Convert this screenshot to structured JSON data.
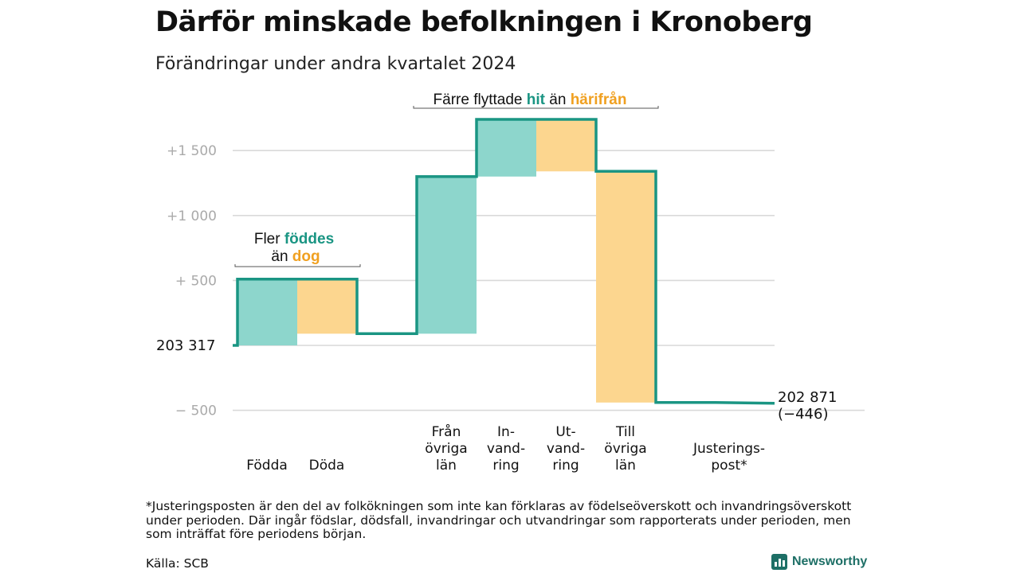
{
  "title": "Därför minskade befolkningen i Kronoberg",
  "subtitle": "Förändringar under andra kvartalet 2024",
  "colors": {
    "increase": "#8dd6cc",
    "decrease": "#fcd68f",
    "line": "#1a9583",
    "hit": "#1a9583",
    "harifran": "#f0a020",
    "grid": "#d9d9d9",
    "tick": "#aaaaaa"
  },
  "annotations": {
    "left": {
      "line1_prefix": "Fler ",
      "line1_highlight": "föddes",
      "line2_prefix": "än ",
      "line2_highlight": "dog"
    },
    "top": {
      "prefix": "Färre flyttade ",
      "highlight1": "hit",
      "middle": " än ",
      "highlight2": "härifrån"
    }
  },
  "chart_data": {
    "type": "waterfall",
    "start_value": 203317,
    "start_label": "203 317",
    "end_value": 202871,
    "end_label_line1": "202 871",
    "end_label_line2": "(−446)",
    "ylim": [
      -560,
      1680
    ],
    "yticks": [
      {
        "value": 1500,
        "label": "+1 500"
      },
      {
        "value": 1000,
        "label": "+1 000"
      },
      {
        "value": 500,
        "label": "+ 500"
      },
      {
        "value": 0,
        "label": ""
      },
      {
        "value": -500,
        "label": "− 500"
      }
    ],
    "steps": [
      {
        "label": [
          "Födda"
        ],
        "type": "increase",
        "from": 0,
        "to": 510
      },
      {
        "label": [
          "Döda"
        ],
        "type": "decrease",
        "from": 510,
        "to": 90
      },
      {
        "label": [
          "Från",
          "övriga",
          "län"
        ],
        "type": "increase",
        "from": 90,
        "to": 1300
      },
      {
        "label": [
          "In-",
          "vand-",
          "ring"
        ],
        "type": "increase",
        "from": 1300,
        "to": 1740
      },
      {
        "label": [
          "Ut-",
          "vand-",
          "ring"
        ],
        "type": "decrease",
        "from": 1740,
        "to": 1340
      },
      {
        "label": [
          "Till",
          "övriga",
          "län"
        ],
        "type": "decrease",
        "from": 1340,
        "to": -440
      },
      {
        "label": [
          "Justerings-",
          "post*"
        ],
        "type": "adjustment",
        "from": -440,
        "to": -446
      }
    ]
  },
  "footnote": "*Justeringsposten är den del av folkökningen som inte kan förklaras av födelseöverskott och invandringsöverskott under perioden. Där ingår födslar, dödsfall, invandringar och utvandringar som rapporterats under perioden, men som inträffat före periodens början.",
  "source": "Källa: SCB",
  "brand": "Newsworthy"
}
